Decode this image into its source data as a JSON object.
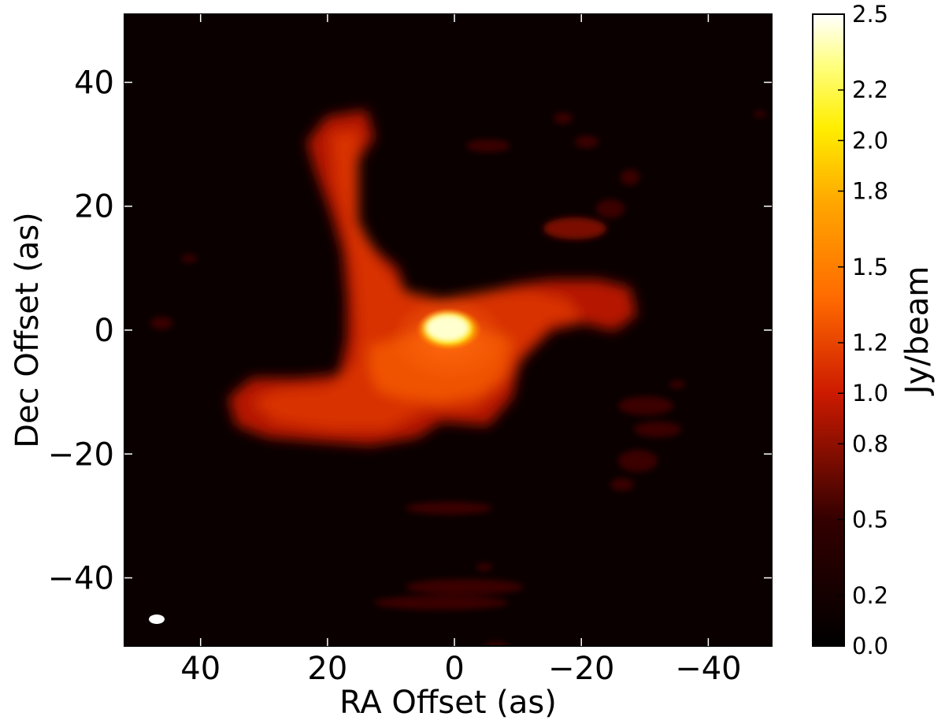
{
  "chart_data": {
    "type": "heatmap",
    "xlabel": "RA Offset (as)",
    "ylabel": "Dec Offset (as)",
    "xlim": [
      52,
      -50
    ],
    "ylim": [
      -51,
      51
    ],
    "x_ticks": [
      {
        "value": 40,
        "label": "40"
      },
      {
        "value": 20,
        "label": "20"
      },
      {
        "value": 0,
        "label": "0"
      },
      {
        "value": -20,
        "label": "−20"
      },
      {
        "value": -40,
        "label": "−40"
      }
    ],
    "y_ticks": [
      {
        "value": 40,
        "label": "40"
      },
      {
        "value": 20,
        "label": "20"
      },
      {
        "value": 0,
        "label": "0"
      },
      {
        "value": -20,
        "label": "−20"
      },
      {
        "value": -40,
        "label": "−40"
      }
    ],
    "colorbar": {
      "label": "Jy/beam",
      "range": [
        0.0,
        2.5
      ],
      "colormap": "afmhot",
      "ticks": [
        {
          "value": 2.5,
          "label": "2.5"
        },
        {
          "value": 2.2,
          "label": "2.2"
        },
        {
          "value": 2.0,
          "label": "2.0"
        },
        {
          "value": 1.8,
          "label": "1.8"
        },
        {
          "value": 1.5,
          "label": "1.5"
        },
        {
          "value": 1.2,
          "label": "1.2"
        },
        {
          "value": 1.0,
          "label": "1.0"
        },
        {
          "value": 0.8,
          "label": "0.8"
        },
        {
          "value": 0.5,
          "label": "0.5"
        },
        {
          "value": 0.2,
          "label": "0.2"
        },
        {
          "value": 0.0,
          "label": "0.0"
        }
      ]
    },
    "features": [
      {
        "name": "core",
        "ra": 0.5,
        "dec": 0.2,
        "peak": 2.4
      },
      {
        "name": "north arm",
        "ra": 15,
        "dec": 25,
        "peak": 0.9
      },
      {
        "name": "south-east arm",
        "ra": 22,
        "dec": -12,
        "peak": 0.95
      },
      {
        "name": "west arm",
        "ra": -15,
        "dec": 2,
        "peak": 0.95
      }
    ],
    "beam": {
      "ra": 46.5,
      "dec": -47
    }
  }
}
